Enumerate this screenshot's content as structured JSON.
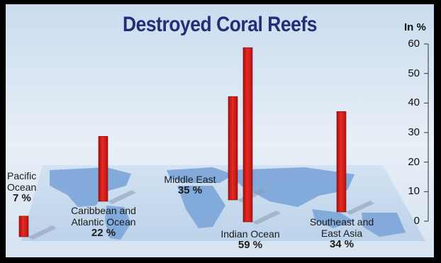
{
  "chart_data": {
    "type": "bar",
    "title": "Destroyed Coral Reefs",
    "unit_label": "In %",
    "ylim": [
      0,
      60
    ],
    "yticks": [
      "0",
      "10",
      "20",
      "30",
      "40",
      "50",
      "60"
    ],
    "categories": [
      "Pacific Ocean",
      "Caribbean and Atlantic Ocean",
      "Middle East",
      "Indian Ocean",
      "Southeast and East Asia"
    ],
    "values": [
      7,
      22,
      35,
      59,
      34
    ],
    "category_text": [
      {
        "line1": "Pacific",
        "line2": "Ocean",
        "pct": "7 %"
      },
      {
        "line1": "Caribbean and",
        "line2": "Atlantic Ocean",
        "pct": "22 %"
      },
      {
        "line1": "Middle East",
        "line2": "",
        "pct": "35 %"
      },
      {
        "line1": "Indian Ocean",
        "line2": "",
        "pct": "59 %"
      },
      {
        "line1": "Southeast and",
        "line2": "East Asia",
        "pct": "34 %"
      }
    ],
    "bar_color": "#d81e1e",
    "map_color": "#7fa8da",
    "background_color": "#dde8f3"
  }
}
